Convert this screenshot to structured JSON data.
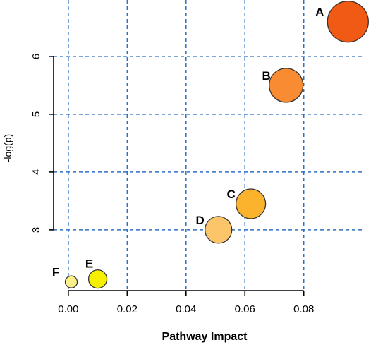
{
  "chart_data": {
    "type": "scatter",
    "title": "",
    "xlabel": "Pathway Impact",
    "ylabel": "-log(p)",
    "xlim": [
      -0.005,
      0.099
    ],
    "ylim": [
      1.95,
      6.95
    ],
    "grid": true,
    "x_ticks": [
      {
        "value": 0.0,
        "label": "0.00"
      },
      {
        "value": 0.02,
        "label": "0.02"
      },
      {
        "value": 0.04,
        "label": "0.04"
      },
      {
        "value": 0.06,
        "label": "0.06"
      },
      {
        "value": 0.08,
        "label": "0.08"
      }
    ],
    "y_ticks": [
      {
        "value": 3,
        "label": "3"
      },
      {
        "value": 4,
        "label": "4"
      },
      {
        "value": 5,
        "label": "5"
      },
      {
        "value": 6,
        "label": "6"
      }
    ],
    "points": [
      {
        "label": "A",
        "x": 0.095,
        "y": 6.6,
        "color": "#f05a14"
      },
      {
        "label": "B",
        "x": 0.074,
        "y": 5.5,
        "color": "#f98c33"
      },
      {
        "label": "C",
        "x": 0.062,
        "y": 3.45,
        "color": "#fbb22c"
      },
      {
        "label": "D",
        "x": 0.051,
        "y": 3.0,
        "color": "#fdc56a"
      },
      {
        "label": "E",
        "x": 0.01,
        "y": 2.15,
        "color": "#f5f000"
      },
      {
        "label": "F",
        "x": 0.001,
        "y": 2.1,
        "color": "#fdf08a"
      }
    ]
  }
}
